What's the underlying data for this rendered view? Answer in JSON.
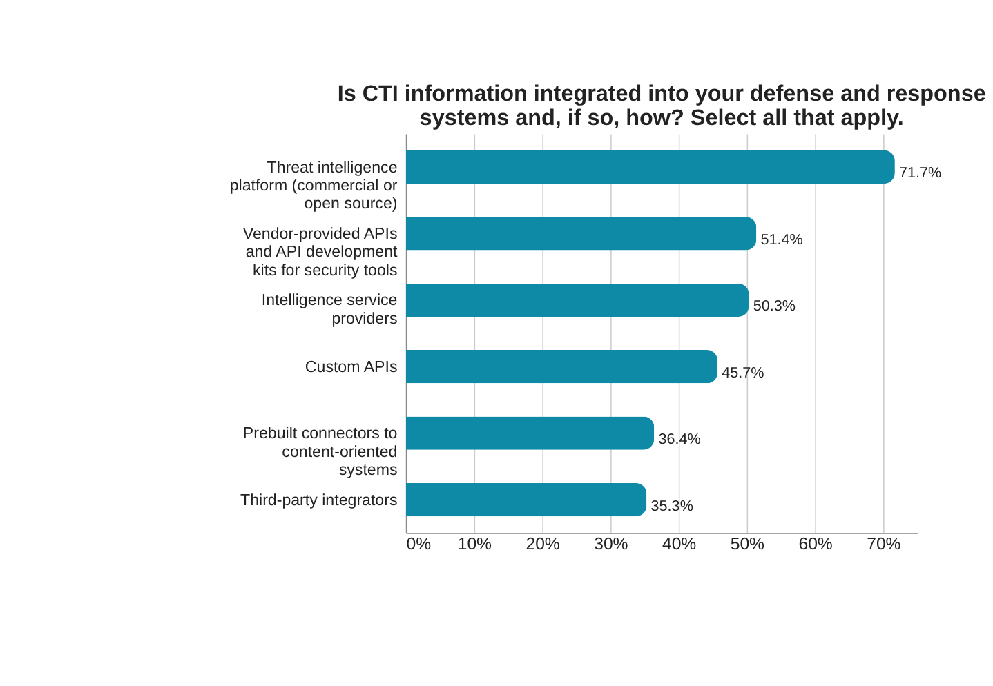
{
  "chart_data": {
    "type": "bar",
    "orientation": "horizontal",
    "title": [
      "Is CTI information integrated into your defense and response",
      "systems and, if so, how? Select all that apply."
    ],
    "categories": [
      "Threat intelligence platform (commercial or open source)",
      "Vendor-provided APIs and API development kits for security tools",
      "Intelligence service providers",
      "Custom APIs",
      "Prebuilt connectors to content-oriented systems",
      "Third-party integrators"
    ],
    "values": [
      71.7,
      51.4,
      50.3,
      45.7,
      36.4,
      35.3
    ],
    "value_labels": [
      "71.7%",
      "51.4%",
      "50.3%",
      "45.7%",
      "36.4%",
      "35.3%"
    ],
    "color": "#0e8aa6",
    "xlim": [
      0,
      75
    ],
    "xticks": [
      {
        "value": 0,
        "label": "0%"
      },
      {
        "value": 10,
        "label": "10%"
      },
      {
        "value": 20,
        "label": "20%"
      },
      {
        "value": 30,
        "label": "30%"
      },
      {
        "value": 40,
        "label": "40%"
      },
      {
        "value": 50,
        "label": "50%"
      },
      {
        "value": 60,
        "label": "60%"
      },
      {
        "value": 70,
        "label": "70%"
      }
    ],
    "grid": "x"
  }
}
